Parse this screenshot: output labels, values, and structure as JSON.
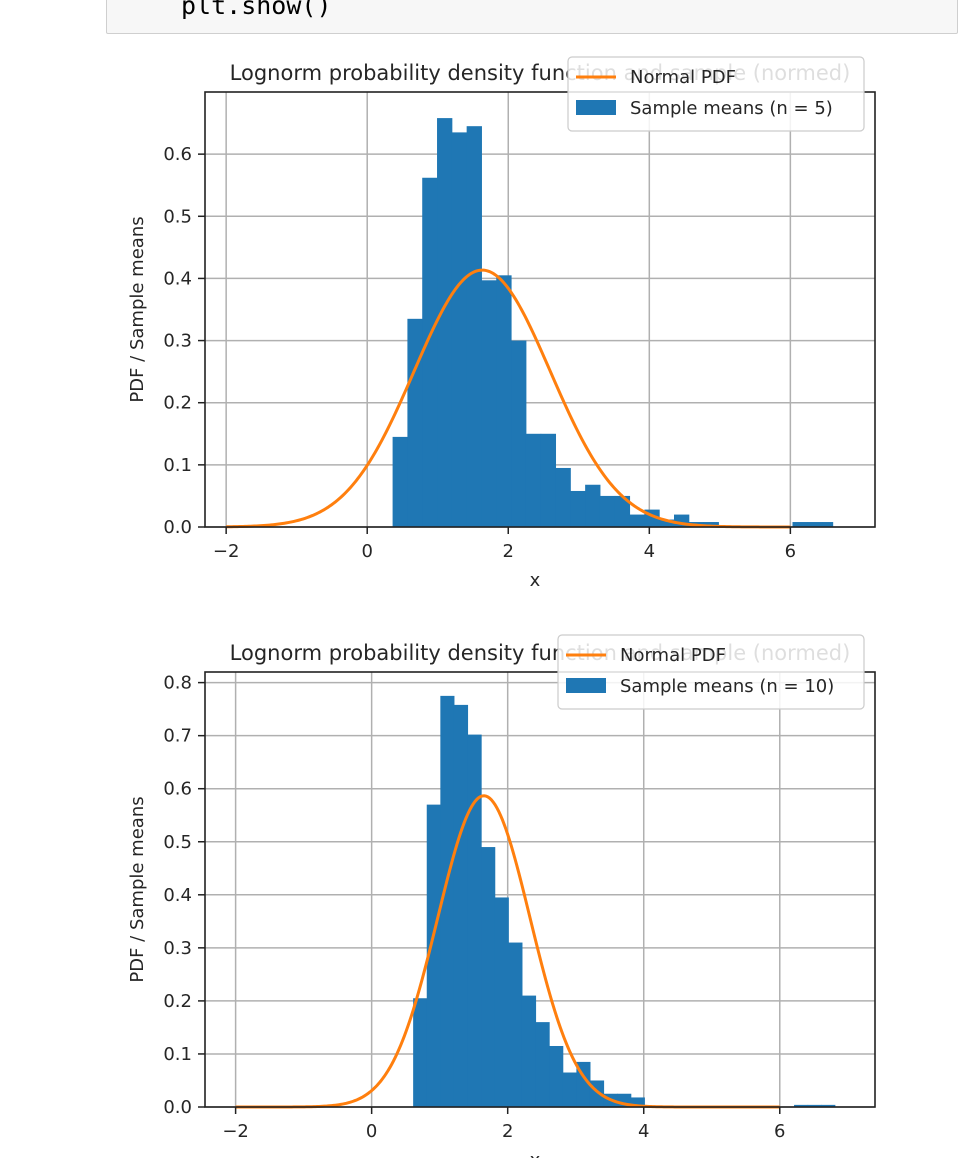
{
  "code": {
    "line": "plt.show()"
  },
  "colors": {
    "bar": "#1f77b4",
    "line": "#ff7f0e",
    "grid": "#b0b0b0"
  },
  "chart_data": [
    {
      "type": "bar",
      "title": "Lognorm probability density function and sample (normed)",
      "xlabel": "x",
      "ylabel": "PDF / Sample means",
      "xlim": [
        -2.3,
        7.2
      ],
      "ylim": [
        0,
        0.7
      ],
      "xticks": [
        -2,
        0,
        2,
        4,
        6
      ],
      "xtick_labels": [
        "−2",
        "0",
        "2",
        "4",
        "6"
      ],
      "yticks": [
        0,
        0.1,
        0.2,
        0.3,
        0.4,
        0.5,
        0.6
      ],
      "ytick_labels": [
        "0.0",
        "0.1",
        "0.2",
        "0.3",
        "0.4",
        "0.5",
        "0.6"
      ],
      "grid": true,
      "legend_position": "top-right",
      "histogram": {
        "name": "Sample means (n = 5)",
        "bin_edges": [
          0.36,
          0.57,
          0.78,
          0.99,
          1.2,
          1.41,
          1.62,
          1.83,
          2.04,
          2.25,
          2.46,
          2.67,
          2.88,
          3.09,
          3.3,
          3.51,
          3.72,
          3.93,
          4.14,
          4.35,
          4.56,
          4.77,
          4.98,
          5.19,
          5.4,
          5.61,
          5.82,
          6.03,
          6.24,
          6.45,
          6.6
        ],
        "values": [
          0.145,
          0.335,
          0.562,
          0.658,
          0.635,
          0.645,
          0.397,
          0.405,
          0.3,
          0.15,
          0.15,
          0.095,
          0.058,
          0.068,
          0.05,
          0.05,
          0.02,
          0.028,
          0.012,
          0.02,
          0.008,
          0.008,
          0.0,
          0.0,
          0.0,
          0.0,
          0.0,
          0.008,
          0.008,
          0.008
        ]
      },
      "line": {
        "name": "Normal PDF",
        "mean": 1.63,
        "std": 0.965,
        "x_range": [
          -2,
          6
        ]
      }
    },
    {
      "type": "bar",
      "title": "Lognorm probability density function and sample (normed)",
      "xlabel": "x",
      "ylabel": "PDF / Sample means",
      "xlim": [
        -2.45,
        7.4
      ],
      "ylim": [
        0,
        0.82
      ],
      "xticks": [
        -2,
        0,
        2,
        4,
        6
      ],
      "xtick_labels": [
        "−2",
        "0",
        "2",
        "4",
        "6"
      ],
      "yticks": [
        0,
        0.1,
        0.2,
        0.3,
        0.4,
        0.5,
        0.6,
        0.7,
        0.8
      ],
      "ytick_labels": [
        "0.0",
        "0.1",
        "0.2",
        "0.3",
        "0.4",
        "0.5",
        "0.6",
        "0.7",
        "0.8"
      ],
      "grid": true,
      "legend_position": "top-right",
      "histogram": {
        "name": "Sample means (n = 10)",
        "bin_edges": [
          0.61,
          0.81,
          1.01,
          1.21,
          1.41,
          1.61,
          1.81,
          2.01,
          2.21,
          2.41,
          2.61,
          2.81,
          3.01,
          3.21,
          3.41,
          3.61,
          3.81,
          4.01,
          4.21,
          4.41,
          4.61,
          4.81,
          5.01,
          5.21,
          5.41,
          5.61,
          5.81,
          6.01,
          6.21,
          6.41,
          6.61,
          6.81
        ],
        "values": [
          0.205,
          0.57,
          0.775,
          0.758,
          0.702,
          0.49,
          0.395,
          0.31,
          0.21,
          0.16,
          0.115,
          0.065,
          0.085,
          0.05,
          0.025,
          0.025,
          0.018,
          0.0,
          0.0,
          0.0,
          0.0,
          0.0,
          0.0,
          0.0,
          0.0,
          0.0,
          0.0,
          0.0,
          0.004,
          0.004,
          0.004
        ]
      },
      "line": {
        "name": "Normal PDF",
        "mean": 1.65,
        "std": 0.68,
        "x_range": [
          -2,
          6
        ]
      }
    }
  ]
}
